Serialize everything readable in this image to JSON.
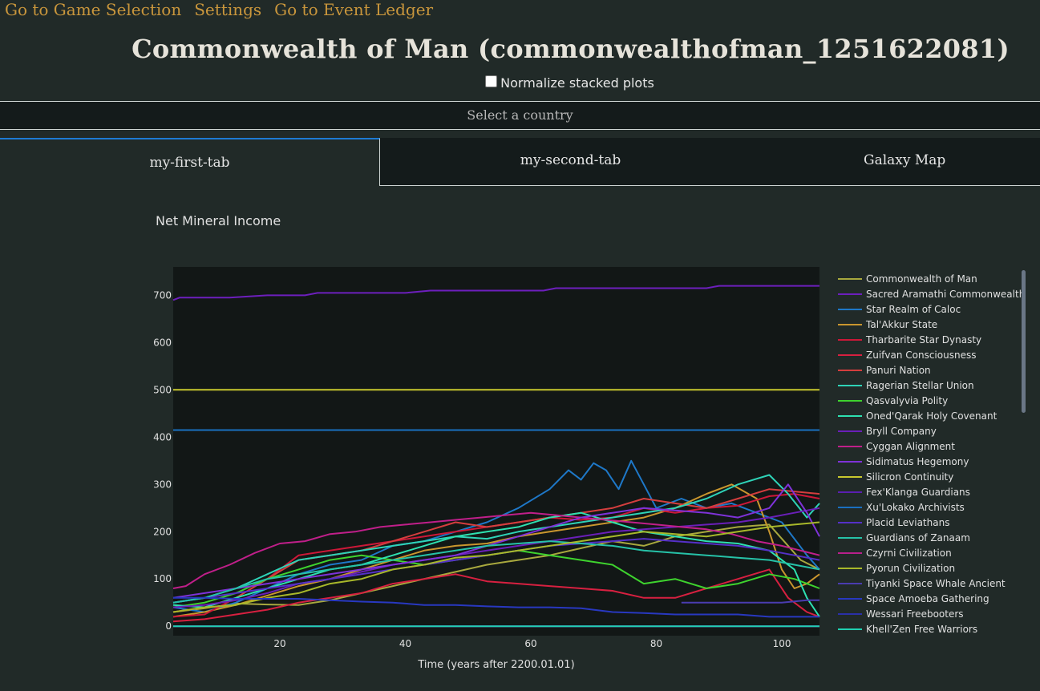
{
  "nav": {
    "game_selection": "Go to Game Selection",
    "settings": "Settings",
    "event_ledger": "Go to Event Ledger"
  },
  "page_title": "Commonwealth of Man (commonwealthofman_1251622081)",
  "normalize_label": "Normalize stacked plots",
  "normalize_checked": false,
  "country_select_placeholder": "Select a country",
  "tabs": [
    "my-first-tab",
    "my-second-tab",
    "Galaxy Map"
  ],
  "colors": {
    "accent": "#1d7bd4",
    "link": "#c9963c",
    "plot_bg": "#121716",
    "page_bg": "#212a28"
  },
  "chart_data": {
    "type": "line",
    "title": "Net Mineral Income",
    "xlabel": "Time (years after 2200.01.01)",
    "ylabel": "",
    "xlim": [
      3,
      106
    ],
    "ylim": [
      -20,
      760
    ],
    "xticks": [
      20,
      40,
      60,
      80,
      100
    ],
    "yticks": [
      0,
      100,
      200,
      300,
      400,
      500,
      600,
      700
    ],
    "grid": false,
    "legend_position": "right",
    "series": [
      {
        "name": "Commonwealth of Man",
        "color": "#a8a83e",
        "x": [
          3,
          8,
          13,
          18,
          23,
          28,
          33,
          38,
          43,
          48,
          53,
          58,
          63,
          68,
          73,
          78,
          83,
          88,
          93,
          98,
          103,
          106
        ],
        "y": [
          30,
          38,
          48,
          46,
          45,
          55,
          70,
          85,
          100,
          115,
          130,
          140,
          150,
          165,
          180,
          170,
          190,
          200,
          210,
          215,
          140,
          120
        ]
      },
      {
        "name": "Sacred Aramathi Commonwealth",
        "color": "#6d1fbd",
        "x": [
          3,
          4,
          8,
          12,
          18,
          24,
          26,
          32,
          40,
          44,
          48,
          56,
          62,
          64,
          70,
          78,
          84,
          88,
          90,
          96,
          100,
          106
        ],
        "y": [
          690,
          695,
          695,
          695,
          700,
          700,
          705,
          705,
          705,
          710,
          710,
          710,
          710,
          715,
          715,
          715,
          715,
          715,
          720,
          720,
          720,
          720
        ]
      },
      {
        "name": "Star Realm of Caloc",
        "color": "#1e78c8",
        "x": [
          3,
          8,
          13,
          18,
          23,
          28,
          33,
          38,
          43,
          48,
          53,
          58,
          63,
          66,
          68,
          70,
          72,
          74,
          76,
          78,
          80,
          84,
          88,
          92,
          96,
          100,
          104,
          106
        ],
        "y": [
          40,
          30,
          50,
          80,
          110,
          130,
          140,
          170,
          180,
          200,
          220,
          250,
          290,
          330,
          310,
          345,
          330,
          290,
          350,
          300,
          250,
          270,
          250,
          260,
          240,
          220,
          150,
          120
        ]
      },
      {
        "name": "Tal'Akkur State",
        "color": "#c9962e",
        "x": [
          3,
          8,
          13,
          18,
          23,
          28,
          33,
          38,
          43,
          48,
          53,
          58,
          63,
          68,
          73,
          78,
          83,
          88,
          92,
          96,
          98,
          100,
          102,
          104,
          106
        ],
        "y": [
          20,
          30,
          45,
          65,
          85,
          100,
          120,
          140,
          160,
          170,
          175,
          190,
          200,
          210,
          220,
          230,
          250,
          280,
          300,
          270,
          200,
          120,
          80,
          90,
          110
        ]
      },
      {
        "name": "Tharbarite Star Dynasty",
        "color": "#cc1838",
        "x": [
          3,
          8,
          13,
          18,
          23,
          28,
          33,
          38,
          43,
          48,
          53,
          58,
          63,
          68,
          73,
          78,
          83,
          88,
          93,
          98,
          102,
          106
        ],
        "y": [
          20,
          25,
          60,
          100,
          150,
          160,
          170,
          180,
          190,
          200,
          210,
          220,
          230,
          225,
          230,
          250,
          240,
          250,
          255,
          275,
          280,
          270
        ]
      },
      {
        "name": "Zuifvan Consciousness",
        "color": "#d72040",
        "x": [
          3,
          8,
          13,
          18,
          23,
          28,
          33,
          38,
          43,
          48,
          53,
          58,
          63,
          68,
          73,
          78,
          83,
          88,
          93,
          98,
          101,
          104,
          106
        ],
        "y": [
          10,
          15,
          25,
          35,
          50,
          60,
          70,
          90,
          100,
          110,
          95,
          90,
          85,
          80,
          75,
          60,
          60,
          80,
          100,
          120,
          60,
          30,
          20
        ]
      },
      {
        "name": "Panuri Nation",
        "color": "#d43e3e",
        "x": [
          3,
          8,
          13,
          18,
          23,
          28,
          33,
          38,
          43,
          48,
          53,
          58,
          63,
          68,
          73,
          78,
          83,
          88,
          93,
          98,
          102,
          106
        ],
        "y": [
          30,
          40,
          60,
          100,
          140,
          150,
          160,
          180,
          200,
          220,
          210,
          220,
          230,
          240,
          250,
          270,
          260,
          250,
          270,
          290,
          285,
          280
        ]
      },
      {
        "name": "Ragerian Stellar Union",
        "color": "#2ed3b7",
        "x": [
          3,
          8,
          13,
          18,
          23,
          28,
          33,
          38,
          43,
          48,
          53,
          58,
          63,
          68,
          73,
          78,
          83,
          88,
          93,
          98,
          101,
          104,
          106
        ],
        "y": [
          50,
          60,
          80,
          110,
          140,
          150,
          160,
          170,
          180,
          190,
          185,
          200,
          210,
          220,
          230,
          240,
          250,
          270,
          300,
          320,
          280,
          230,
          260
        ]
      },
      {
        "name": "Qasvalyvia Polity",
        "color": "#3ed32e",
        "x": [
          3,
          8,
          13,
          18,
          23,
          28,
          33,
          38,
          43,
          48,
          53,
          58,
          63,
          68,
          73,
          78,
          83,
          88,
          93,
          98,
          102,
          106
        ],
        "y": [
          40,
          50,
          70,
          100,
          120,
          140,
          150,
          140,
          130,
          140,
          150,
          160,
          150,
          140,
          130,
          90,
          100,
          80,
          90,
          110,
          100,
          80
        ]
      },
      {
        "name": "Oned'Qarak Holy Covenant",
        "color": "#2ee0b0",
        "x": [
          3,
          8,
          13,
          18,
          23,
          28,
          33,
          38,
          43,
          48,
          53,
          58,
          63,
          68,
          73,
          78,
          83,
          88,
          93,
          98,
          102,
          104,
          106
        ],
        "y": [
          45,
          40,
          60,
          80,
          100,
          120,
          130,
          150,
          170,
          190,
          200,
          210,
          230,
          240,
          220,
          200,
          190,
          180,
          175,
          160,
          120,
          60,
          20
        ]
      },
      {
        "name": "Bryll Company",
        "color": "#6a1fb8",
        "x": [
          3,
          8,
          13,
          18,
          23,
          28,
          33,
          38,
          43,
          48,
          53,
          58,
          63,
          68,
          73,
          78,
          83,
          88,
          93,
          98,
          102,
          106
        ],
        "y": [
          40,
          45,
          55,
          70,
          90,
          100,
          115,
          130,
          140,
          150,
          160,
          170,
          180,
          190,
          200,
          205,
          210,
          215,
          220,
          230,
          240,
          250
        ]
      },
      {
        "name": "Cyggan Alignment",
        "color": "#c01f8a",
        "x": [
          3,
          5,
          8,
          12,
          16,
          20,
          24,
          28,
          32,
          36,
          40,
          44,
          48,
          52,
          56,
          60,
          64,
          68,
          72,
          76,
          80,
          84,
          88,
          92,
          96,
          100,
          103,
          106
        ],
        "y": [
          80,
          85,
          110,
          130,
          155,
          175,
          180,
          195,
          200,
          210,
          215,
          220,
          225,
          230,
          235,
          240,
          235,
          230,
          225,
          220,
          215,
          210,
          205,
          195,
          180,
          170,
          160,
          150
        ]
      },
      {
        "name": "Sidimatus Hegemony",
        "color": "#7e32d8",
        "x": [
          3,
          8,
          13,
          18,
          23,
          28,
          33,
          38,
          43,
          48,
          53,
          58,
          63,
          68,
          73,
          78,
          83,
          88,
          93,
          98,
          101,
          104,
          106
        ],
        "y": [
          60,
          70,
          80,
          90,
          100,
          110,
          120,
          130,
          140,
          150,
          170,
          190,
          210,
          230,
          240,
          250,
          245,
          240,
          230,
          250,
          300,
          240,
          190
        ]
      },
      {
        "name": "Silicron Continuity",
        "color": "#c8c82e",
        "x": [
          3,
          106
        ],
        "y": [
          500,
          500
        ]
      },
      {
        "name": "Fex'Klanga Guardians",
        "color": "#5a1fb0",
        "x": [
          3,
          106
        ],
        "y": [
          0,
          0
        ]
      },
      {
        "name": "Xu'Lokako Archivists",
        "color": "#1a70c0",
        "x": [
          3,
          106
        ],
        "y": [
          415,
          415
        ]
      },
      {
        "name": "Placid Leviathans",
        "color": "#5530c8",
        "x": [
          3,
          8,
          13,
          18,
          23,
          28,
          33,
          38,
          43,
          48,
          53,
          58,
          63,
          68,
          73,
          78,
          83,
          88,
          93,
          98,
          102,
          106
        ],
        "y": [
          50,
          60,
          70,
          80,
          90,
          100,
          110,
          120,
          130,
          140,
          150,
          160,
          170,
          175,
          180,
          185,
          180,
          175,
          170,
          160,
          150,
          140
        ]
      },
      {
        "name": "Guardians of Zanaam",
        "color": "#26c2a8",
        "x": [
          3,
          8,
          13,
          18,
          23,
          28,
          33,
          38,
          43,
          48,
          53,
          58,
          63,
          68,
          73,
          78,
          83,
          88,
          93,
          98,
          102,
          106
        ],
        "y": [
          50,
          60,
          80,
          100,
          110,
          120,
          130,
          140,
          150,
          160,
          170,
          175,
          180,
          175,
          170,
          160,
          155,
          150,
          145,
          140,
          130,
          120
        ]
      },
      {
        "name": "Czyrni Civilization",
        "color": "#b8208c",
        "x": [
          3,
          106
        ],
        "y": [
          0,
          0
        ]
      },
      {
        "name": "Pyorun Civilization",
        "color": "#a8b82a",
        "x": [
          3,
          8,
          13,
          18,
          23,
          28,
          33,
          38,
          43,
          48,
          53,
          58,
          63,
          68,
          73,
          78,
          83,
          88,
          93,
          98,
          102,
          106
        ],
        "y": [
          30,
          40,
          45,
          60,
          70,
          90,
          100,
          120,
          130,
          145,
          150,
          160,
          170,
          180,
          190,
          200,
          195,
          190,
          200,
          210,
          215,
          220
        ]
      },
      {
        "name": "Tiyanki Space Whale Ancient",
        "color": "#4a3cb0",
        "x": [
          84,
          90,
          96,
          100,
          104,
          106
        ],
        "y": [
          50,
          50,
          50,
          50,
          55,
          55
        ]
      },
      {
        "name": "Space Amoeba Gathering",
        "color": "#2838c0",
        "x": [
          3,
          8,
          13,
          18,
          23,
          28,
          33,
          38,
          43,
          48,
          53,
          58,
          63,
          68,
          73,
          78,
          83,
          88,
          93,
          98,
          102,
          106
        ],
        "y": [
          60,
          60,
          58,
          58,
          58,
          55,
          52,
          50,
          45,
          45,
          42,
          40,
          40,
          38,
          30,
          28,
          25,
          25,
          25,
          20,
          20,
          20
        ]
      },
      {
        "name": "Wessari Freebooters",
        "color": "#2a30a8",
        "x": [
          3,
          106
        ],
        "y": [
          0,
          0
        ]
      },
      {
        "name": "Khell'Zen Free Warriors",
        "color": "#20d0b0",
        "x": [
          3,
          106
        ],
        "y": [
          0,
          0
        ]
      }
    ]
  }
}
